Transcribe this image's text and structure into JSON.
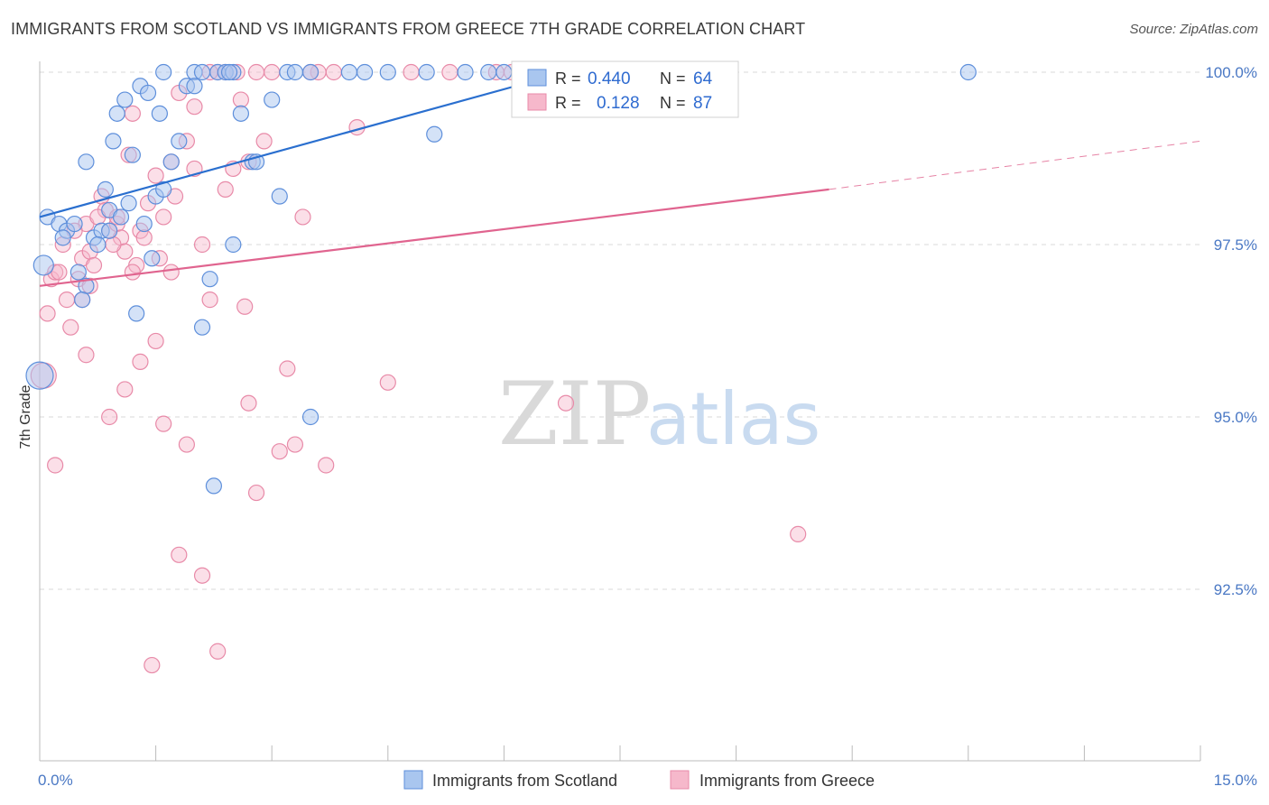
{
  "title": "IMMIGRANTS FROM SCOTLAND VS IMMIGRANTS FROM GREECE 7TH GRADE CORRELATION CHART",
  "source": "Source: ZipAtlas.com",
  "watermark": {
    "zip": "ZIP",
    "atlas": "atlas"
  },
  "legend": {
    "r_label": "R =",
    "n_label": "N =",
    "scotland": {
      "r": "0.440",
      "n": "64"
    },
    "greece": {
      "r": "0.128",
      "n": "87"
    }
  },
  "colors": {
    "scotland_fill": "#a9c6ef",
    "scotland_stroke": "#5e8fdb",
    "scotland_line": "#2a6fcf",
    "greece_fill": "#f6b8cb",
    "greece_stroke": "#e88aa8",
    "greece_line": "#e0648f",
    "grid": "#d8d8d8",
    "tick_text": "#4a78c4"
  },
  "chart_data": {
    "type": "scatter",
    "title": "IMMIGRANTS FROM SCOTLAND VS IMMIGRANTS FROM GREECE 7TH GRADE CORRELATION CHART",
    "xlabel": "",
    "ylabel": "7th Grade",
    "xlim": [
      0,
      15
    ],
    "ylim": [
      90.2,
      100.4
    ],
    "x_tick_labels": [
      {
        "value": 0,
        "label": "0.0%"
      },
      {
        "value": 15,
        "label": "15.0%"
      }
    ],
    "y_tick_labels": [
      {
        "value": 100,
        "label": "100.0%"
      },
      {
        "value": 97.5,
        "label": "97.5%"
      },
      {
        "value": 95,
        "label": "95.0%"
      },
      {
        "value": 92.5,
        "label": "92.5%"
      }
    ],
    "grid": true,
    "legend_position": "top-center",
    "series": [
      {
        "name": "Immigrants from Scotland",
        "points": [
          [
            0.1,
            97.9
          ],
          [
            0.25,
            97.8
          ],
          [
            0.35,
            97.7
          ],
          [
            0.45,
            97.8
          ],
          [
            0.3,
            97.6
          ],
          [
            0.05,
            97.2
          ],
          [
            0.5,
            97.1
          ],
          [
            0.6,
            96.9
          ],
          [
            0.55,
            96.7
          ],
          [
            0.0,
            95.6
          ],
          [
            0.6,
            98.7
          ],
          [
            0.7,
            97.6
          ],
          [
            0.8,
            97.7
          ],
          [
            0.9,
            98.0
          ],
          [
            0.85,
            98.3
          ],
          [
            0.95,
            99.0
          ],
          [
            1.0,
            99.4
          ],
          [
            1.1,
            99.6
          ],
          [
            1.3,
            99.8
          ],
          [
            1.4,
            99.7
          ],
          [
            1.5,
            98.2
          ],
          [
            1.6,
            98.3
          ],
          [
            1.7,
            98.7
          ],
          [
            1.8,
            99.0
          ],
          [
            1.9,
            99.8
          ],
          [
            2.0,
            100.0
          ],
          [
            2.1,
            100.0
          ],
          [
            2.3,
            100.0
          ],
          [
            2.4,
            100.0
          ],
          [
            2.5,
            100.0
          ],
          [
            1.55,
            99.4
          ],
          [
            1.2,
            98.8
          ],
          [
            1.25,
            96.5
          ],
          [
            1.45,
            97.3
          ],
          [
            2.2,
            97.0
          ],
          [
            2.1,
            96.3
          ],
          [
            2.5,
            97.5
          ],
          [
            2.75,
            98.7
          ],
          [
            2.8,
            98.7
          ],
          [
            3.1,
            98.2
          ],
          [
            3.5,
            95.0
          ],
          [
            2.6,
            99.4
          ],
          [
            3.0,
            99.6
          ],
          [
            3.2,
            100.0
          ],
          [
            3.3,
            100.0
          ],
          [
            3.5,
            100.0
          ],
          [
            4.0,
            100.0
          ],
          [
            4.2,
            100.0
          ],
          [
            4.5,
            100.0
          ],
          [
            5.0,
            100.0
          ],
          [
            5.5,
            100.0
          ],
          [
            5.8,
            100.0
          ],
          [
            6.0,
            100.0
          ],
          [
            5.1,
            99.1
          ],
          [
            2.25,
            94.0
          ],
          [
            1.05,
            97.9
          ],
          [
            1.15,
            98.1
          ],
          [
            1.35,
            97.8
          ],
          [
            1.6,
            100.0
          ],
          [
            2.0,
            99.8
          ],
          [
            12.0,
            100.0
          ],
          [
            0.9,
            97.7
          ],
          [
            0.75,
            97.5
          ],
          [
            2.45,
            100.0
          ]
        ]
      },
      {
        "name": "Immigrants from Greece",
        "points": [
          [
            0.1,
            96.5
          ],
          [
            0.15,
            97.0
          ],
          [
            0.2,
            97.1
          ],
          [
            0.3,
            97.5
          ],
          [
            0.35,
            96.7
          ],
          [
            0.4,
            96.3
          ],
          [
            0.5,
            97.0
          ],
          [
            0.55,
            97.3
          ],
          [
            0.6,
            97.8
          ],
          [
            0.65,
            97.4
          ],
          [
            0.7,
            97.2
          ],
          [
            0.8,
            98.2
          ],
          [
            0.85,
            98.0
          ],
          [
            0.9,
            97.7
          ],
          [
            1.0,
            97.8
          ],
          [
            1.05,
            97.6
          ],
          [
            1.1,
            97.4
          ],
          [
            1.15,
            98.8
          ],
          [
            1.2,
            99.4
          ],
          [
            1.25,
            97.2
          ],
          [
            1.3,
            97.7
          ],
          [
            1.4,
            98.1
          ],
          [
            1.5,
            98.5
          ],
          [
            1.6,
            97.9
          ],
          [
            1.7,
            98.7
          ],
          [
            1.8,
            99.7
          ],
          [
            1.9,
            99.0
          ],
          [
            2.0,
            98.6
          ],
          [
            2.1,
            97.5
          ],
          [
            2.2,
            96.7
          ],
          [
            2.3,
            100.0
          ],
          [
            2.4,
            98.3
          ],
          [
            2.5,
            98.6
          ],
          [
            2.6,
            99.6
          ],
          [
            2.7,
            98.7
          ],
          [
            2.8,
            100.0
          ],
          [
            2.9,
            99.0
          ],
          [
            3.0,
            100.0
          ],
          [
            3.2,
            95.7
          ],
          [
            3.4,
            97.9
          ],
          [
            3.6,
            100.0
          ],
          [
            4.1,
            99.2
          ],
          [
            4.5,
            95.5
          ],
          [
            5.3,
            100.0
          ],
          [
            6.1,
            100.0
          ],
          [
            6.8,
            95.2
          ],
          [
            0.2,
            94.3
          ],
          [
            0.6,
            95.9
          ],
          [
            0.9,
            95.0
          ],
          [
            1.1,
            95.4
          ],
          [
            1.3,
            95.8
          ],
          [
            1.5,
            96.1
          ],
          [
            1.6,
            94.9
          ],
          [
            1.8,
            93.0
          ],
          [
            1.9,
            94.6
          ],
          [
            2.1,
            92.7
          ],
          [
            2.3,
            91.6
          ],
          [
            2.7,
            95.2
          ],
          [
            2.8,
            93.9
          ],
          [
            3.1,
            94.5
          ],
          [
            3.3,
            94.6
          ],
          [
            3.7,
            94.3
          ],
          [
            1.45,
            91.4
          ],
          [
            3.5,
            100.0
          ],
          [
            9.8,
            93.3
          ],
          [
            2.55,
            100.0
          ],
          [
            1.7,
            97.1
          ],
          [
            0.75,
            97.9
          ],
          [
            0.45,
            97.7
          ],
          [
            1.0,
            97.9
          ],
          [
            2.0,
            99.5
          ],
          [
            2.4,
            100.0
          ],
          [
            0.65,
            96.9
          ],
          [
            1.2,
            97.1
          ],
          [
            3.8,
            100.0
          ],
          [
            4.8,
            100.0
          ],
          [
            6.2,
            100.0
          ],
          [
            1.55,
            97.3
          ],
          [
            2.65,
            96.6
          ],
          [
            0.05,
            95.6
          ],
          [
            0.25,
            97.1
          ],
          [
            0.95,
            97.5
          ],
          [
            1.75,
            98.2
          ],
          [
            2.2,
            100.0
          ],
          [
            0.55,
            96.7
          ],
          [
            1.35,
            97.6
          ],
          [
            5.9,
            100.0
          ]
        ]
      }
    ],
    "trend_lines": [
      {
        "series": "Immigrants from Scotland",
        "x": [
          0,
          6.8
        ],
        "y": [
          97.9,
          100.0
        ],
        "style": "solid"
      },
      {
        "series": "Immigrants from Greece",
        "x": [
          0,
          10.2
        ],
        "y": [
          96.9,
          98.3
        ],
        "style": "solid"
      },
      {
        "series": "Immigrants from Greece",
        "x": [
          10.2,
          15
        ],
        "y": [
          98.3,
          99.0
        ],
        "style": "dashed"
      }
    ]
  }
}
